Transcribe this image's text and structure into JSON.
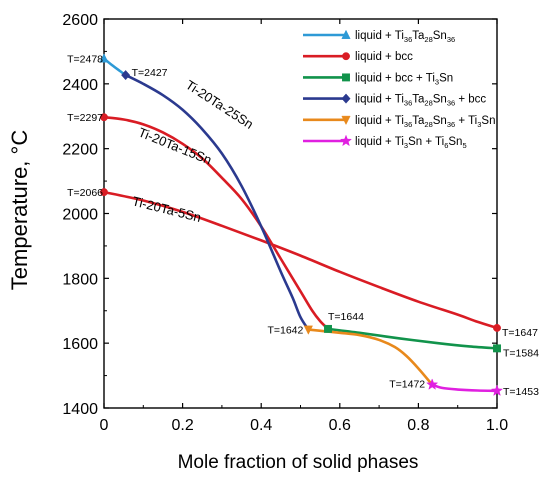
{
  "chart_data": {
    "type": "line",
    "xlabel": "Mole fraction of solid phases",
    "ylabel": "Temperature, °C",
    "xlim": [
      0,
      1.0
    ],
    "ylim": [
      1400,
      2600
    ],
    "xticks": [
      "0",
      "0.2",
      "0.4",
      "0.6",
      "0.8",
      "1.0"
    ],
    "xtick_values": [
      0,
      0.2,
      0.4,
      0.6,
      0.8,
      1.0
    ],
    "yticks": [
      "1400",
      "1600",
      "1800",
      "2000",
      "2200",
      "2400",
      "2600"
    ],
    "ytick_values": [
      1400,
      1600,
      1800,
      2000,
      2200,
      2400,
      2600
    ],
    "grid": false,
    "legend_position": "top-right",
    "series": [
      {
        "color": "#2e9ad6",
        "marker": "triangle-up",
        "legend": {
          "pre": "liquid + Ti",
          "parts": [
            [
              "36",
              "sub"
            ],
            [
              "Ta",
              "n"
            ],
            [
              "28",
              "sub"
            ],
            [
              "Sn",
              "n"
            ],
            [
              "36",
              "sub"
            ]
          ]
        },
        "points": [
          [
            0,
            2478
          ],
          [
            0.02,
            2458
          ],
          [
            0.04,
            2440
          ],
          [
            0.055,
            2427
          ]
        ],
        "markers": [
          [
            0,
            2478
          ]
        ]
      },
      {
        "color": "#d91c24",
        "marker": "circle",
        "legend": {
          "pre": "liquid + bcc",
          "parts": []
        },
        "points": [
          [
            0,
            2297
          ],
          [
            0.05,
            2290
          ],
          [
            0.1,
            2275
          ],
          [
            0.15,
            2250
          ],
          [
            0.2,
            2215
          ],
          [
            0.25,
            2170
          ],
          [
            0.3,
            2110
          ],
          [
            0.35,
            2045
          ],
          [
            0.4,
            1960
          ],
          [
            0.45,
            1860
          ],
          [
            0.5,
            1760
          ],
          [
            0.53,
            1700
          ],
          [
            0.55,
            1668
          ],
          [
            0.57,
            1644
          ]
        ],
        "markers": [
          [
            0,
            2297
          ]
        ],
        "extra_lines": [
          [
            [
              0,
              2066
            ],
            [
              0.1,
              2040
            ],
            [
              0.2,
              2005
            ],
            [
              0.3,
              1962
            ],
            [
              0.4,
              1917
            ],
            [
              0.5,
              1870
            ],
            [
              0.6,
              1820
            ],
            [
              0.7,
              1773
            ],
            [
              0.8,
              1728
            ],
            [
              0.9,
              1688
            ],
            [
              0.95,
              1666
            ],
            [
              1.0,
              1647
            ]
          ]
        ],
        "extra_markers": [
          [
            0,
            2066
          ],
          [
            1.0,
            1647
          ]
        ]
      },
      {
        "color": "#11934b",
        "marker": "square",
        "legend": {
          "pre": "liquid + bcc + Ti",
          "parts": [
            [
              "3",
              "sub"
            ],
            [
              "Sn",
              "n"
            ]
          ]
        },
        "points": [
          [
            0.57,
            1644
          ],
          [
            0.65,
            1632
          ],
          [
            0.75,
            1615
          ],
          [
            0.85,
            1600
          ],
          [
            0.93,
            1590
          ],
          [
            1.0,
            1584
          ]
        ],
        "markers": [
          [
            0.57,
            1644
          ],
          [
            1.0,
            1584
          ]
        ]
      },
      {
        "color": "#2b3a8f",
        "marker": "diamond",
        "legend": {
          "pre": "liquid + Ti",
          "parts": [
            [
              "36",
              "sub"
            ],
            [
              "Ta",
              "n"
            ],
            [
              "28",
              "sub"
            ],
            [
              "Sn",
              "n"
            ],
            [
              "36",
              "sub"
            ],
            [
              " + bcc",
              "n"
            ]
          ]
        },
        "points": [
          [
            0.055,
            2427
          ],
          [
            0.1,
            2400
          ],
          [
            0.15,
            2365
          ],
          [
            0.2,
            2320
          ],
          [
            0.25,
            2260
          ],
          [
            0.3,
            2185
          ],
          [
            0.35,
            2085
          ],
          [
            0.4,
            1960
          ],
          [
            0.45,
            1820
          ],
          [
            0.48,
            1740
          ],
          [
            0.5,
            1680
          ],
          [
            0.52,
            1642
          ]
        ],
        "markers": [
          [
            0.055,
            2427
          ]
        ]
      },
      {
        "color": "#e8891c",
        "marker": "triangle-down",
        "legend": {
          "pre": "liquid + Ti",
          "parts": [
            [
              "36",
              "sub"
            ],
            [
              "Ta",
              "n"
            ],
            [
              "28",
              "sub"
            ],
            [
              "Sn",
              "n"
            ],
            [
              "36",
              "sub"
            ],
            [
              " + Ti",
              "n"
            ],
            [
              "3",
              "sub"
            ],
            [
              "Sn",
              "n"
            ]
          ]
        },
        "points": [
          [
            0.52,
            1642
          ],
          [
            0.56,
            1637
          ],
          [
            0.6,
            1632
          ],
          [
            0.65,
            1625
          ],
          [
            0.7,
            1610
          ],
          [
            0.74,
            1588
          ],
          [
            0.77,
            1560
          ],
          [
            0.8,
            1522
          ],
          [
            0.835,
            1472
          ]
        ],
        "markers": [
          [
            0.52,
            1642
          ]
        ]
      },
      {
        "color": "#e020e0",
        "marker": "star",
        "legend": {
          "pre": "liquid + Ti",
          "parts": [
            [
              "3",
              "sub"
            ],
            [
              "Sn + Ti",
              "n"
            ],
            [
              "6",
              "sub"
            ],
            [
              "Sn",
              "n"
            ],
            [
              "5",
              "sub"
            ]
          ]
        },
        "points": [
          [
            0.835,
            1472
          ],
          [
            0.86,
            1462
          ],
          [
            0.9,
            1457
          ],
          [
            0.95,
            1454
          ],
          [
            1.0,
            1453
          ]
        ],
        "markers": [
          [
            0.835,
            1472
          ],
          [
            1.0,
            1453
          ]
        ]
      }
    ],
    "annotations": [
      {
        "text": "T=2478",
        "x": 0,
        "y": 2478,
        "anchor": "end",
        "dx": -1,
        "dy": 4
      },
      {
        "text": "T=2427",
        "x": 0.055,
        "y": 2427,
        "anchor": "start",
        "dx": 6,
        "dy": 1
      },
      {
        "text": "T=2297",
        "x": 0,
        "y": 2297,
        "anchor": "end",
        "dx": -1,
        "dy": 4
      },
      {
        "text": "T=2066",
        "x": 0,
        "y": 2066,
        "anchor": "end",
        "dx": -1,
        "dy": 4
      },
      {
        "text": "T=1644",
        "x": 0.57,
        "y": 1644,
        "anchor": "start",
        "dx": 0,
        "dy": -9
      },
      {
        "text": "T=1642",
        "x": 0.52,
        "y": 1642,
        "anchor": "end",
        "dx": -5,
        "dy": 4
      },
      {
        "text": "T=1647",
        "x": 1.0,
        "y": 1647,
        "anchor": "start",
        "dx": 5,
        "dy": 8
      },
      {
        "text": "T=1584",
        "x": 1.0,
        "y": 1584,
        "anchor": "start",
        "dx": 6,
        "dy": 8
      },
      {
        "text": "T=1472",
        "x": 0.835,
        "y": 1472,
        "anchor": "end",
        "dx": -7,
        "dy": 3
      },
      {
        "text": "T=1453",
        "x": 1.0,
        "y": 1453,
        "anchor": "start",
        "dx": 6,
        "dy": 4
      }
    ],
    "curve_labels": [
      {
        "text": "Ti-20Ta-25Sn",
        "x": 0.205,
        "y": 2390,
        "rotate": 33
      },
      {
        "text": "Ti-20Ta-15Sn",
        "x": 0.085,
        "y": 2240,
        "rotate": 22
      },
      {
        "text": "Ti-20Ta-5Sn",
        "x": 0.07,
        "y": 2026,
        "rotate": 14
      }
    ]
  }
}
